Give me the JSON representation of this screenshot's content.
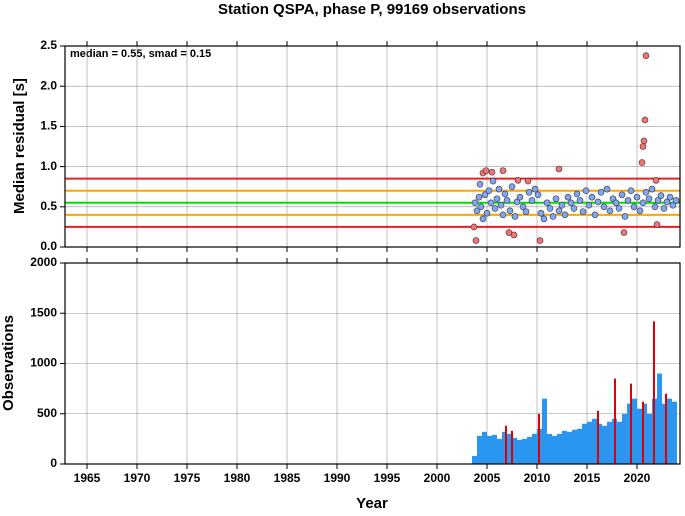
{
  "chart_data": [
    {
      "type": "scatter",
      "title": "Station QSPA, phase P, 99169 observations",
      "ylabel": "Median residual [s]",
      "annotation": "median = 0.55, smad = 0.15",
      "xlim": [
        1962.8,
        2024.3
      ],
      "xticks": [
        1965,
        1970,
        1975,
        1980,
        1985,
        1990,
        1995,
        2000,
        2005,
        2010,
        2015,
        2020
      ],
      "ylim": [
        0,
        2.5
      ],
      "yticks": [
        {
          "value": 0,
          "label": "0.0"
        },
        0.5,
        {
          "value": 1,
          "label": "1.0"
        },
        1.5,
        {
          "value": 2,
          "label": "2.0"
        },
        2.5
      ],
      "grid": true,
      "reference_lines": [
        {
          "value": 0.85,
          "color": "#e82020"
        },
        {
          "value": 0.7,
          "color": "#ffa500"
        },
        {
          "value": 0.55,
          "color": "#00e000"
        },
        {
          "value": 0.4,
          "color": "#ffa500"
        },
        {
          "value": 0.25,
          "color": "#e82020"
        }
      ],
      "series": [
        {
          "color": "#7ea6f4",
          "x": [
            2003.8,
            2004.0,
            2004.2,
            2004.3,
            2004.4,
            2004.6,
            2004.8,
            2005.0,
            2005.2,
            2005.4,
            2005.6,
            2005.8,
            2006.0,
            2006.2,
            2006.4,
            2006.6,
            2006.8,
            2007.0,
            2007.3,
            2007.5,
            2007.8,
            2008.0,
            2008.3,
            2008.6,
            2008.9,
            2009.2,
            2009.5,
            2009.8,
            2010.1,
            2010.4,
            2010.7,
            2011.0,
            2011.3,
            2011.6,
            2011.9,
            2012.2,
            2012.5,
            2012.8,
            2013.1,
            2013.4,
            2013.7,
            2014.0,
            2014.3,
            2014.6,
            2014.9,
            2015.2,
            2015.5,
            2015.8,
            2016.1,
            2016.4,
            2016.7,
            2017.0,
            2017.3,
            2017.6,
            2017.9,
            2018.2,
            2018.5,
            2018.8,
            2019.1,
            2019.4,
            2019.7,
            2020.0,
            2020.3,
            2020.6,
            2020.9,
            2021.2,
            2021.5,
            2021.8,
            2022.1,
            2022.4,
            2022.7,
            2023.0,
            2023.3,
            2023.6,
            2023.9
          ],
          "values": [
            0.55,
            0.45,
            0.62,
            0.78,
            0.5,
            0.35,
            0.65,
            0.42,
            0.7,
            0.55,
            0.82,
            0.48,
            0.6,
            0.72,
            0.52,
            0.4,
            0.66,
            0.58,
            0.45,
            0.75,
            0.38,
            0.56,
            0.62,
            0.5,
            0.44,
            0.68,
            0.58,
            0.72,
            0.65,
            0.42,
            0.35,
            0.55,
            0.48,
            0.38,
            0.6,
            0.45,
            0.52,
            0.4,
            0.62,
            0.55,
            0.48,
            0.66,
            0.58,
            0.44,
            0.7,
            0.52,
            0.62,
            0.4,
            0.56,
            0.68,
            0.5,
            0.72,
            0.45,
            0.6,
            0.55,
            0.48,
            0.65,
            0.38,
            0.58,
            0.7,
            0.5,
            0.62,
            0.45,
            0.55,
            0.68,
            0.6,
            0.72,
            0.5,
            0.58,
            0.64,
            0.48,
            0.56,
            0.62,
            0.52,
            0.58
          ]
        },
        {
          "color": "#f47272",
          "x": [
            2003.7,
            2003.9,
            2004.6,
            2004.9,
            2005.5,
            2006.6,
            2007.2,
            2007.7,
            2008.1,
            2009.1,
            2010.3,
            2012.2,
            2018.7,
            2020.5,
            2020.6,
            2020.7,
            2020.8,
            2020.9,
            2021.9,
            2022.0
          ],
          "values": [
            0.25,
            0.08,
            0.92,
            0.95,
            0.93,
            0.95,
            0.18,
            0.15,
            0.83,
            0.82,
            0.08,
            0.97,
            0.18,
            1.05,
            1.25,
            1.32,
            1.58,
            2.38,
            0.83,
            0.28
          ]
        }
      ]
    },
    {
      "type": "bar",
      "ylabel": "Observations",
      "xlabel": "Year",
      "xlim": [
        1962.8,
        2024.3
      ],
      "xticks": [
        1965,
        1970,
        1975,
        1980,
        1985,
        1990,
        1995,
        2000,
        2005,
        2010,
        2015,
        2020
      ],
      "ylim": [
        0,
        2000
      ],
      "yticks": [
        0,
        500,
        1000,
        1500,
        2000
      ],
      "grid": true,
      "series": [
        {
          "color": "#2a96f0",
          "x": [
            2003.75,
            2004.25,
            2004.75,
            2005.25,
            2005.75,
            2006.25,
            2006.75,
            2007.25,
            2007.75,
            2008.25,
            2008.75,
            2009.25,
            2009.75,
            2010.25,
            2010.75,
            2011.25,
            2011.75,
            2012.25,
            2012.75,
            2013.25,
            2013.75,
            2014.25,
            2014.75,
            2015.25,
            2015.75,
            2016.25,
            2016.75,
            2017.25,
            2017.75,
            2018.25,
            2018.75,
            2019.25,
            2019.75,
            2020.25,
            2020.75,
            2021.25,
            2021.75,
            2022.25,
            2022.75,
            2023.25,
            2023.75
          ],
          "values": [
            80,
            280,
            320,
            280,
            290,
            250,
            320,
            300,
            260,
            240,
            250,
            270,
            300,
            350,
            650,
            300,
            280,
            300,
            330,
            320,
            340,
            350,
            400,
            420,
            450,
            400,
            380,
            420,
            450,
            420,
            500,
            600,
            650,
            550,
            600,
            500,
            650,
            900,
            600,
            650,
            620
          ]
        },
        {
          "color": "#e00000",
          "x": [
            2006.9,
            2007.5,
            2010.2,
            2016.1,
            2017.8,
            2019.4,
            2020.6,
            2021.7,
            2022.9
          ],
          "values": [
            380,
            330,
            500,
            530,
            850,
            800,
            620,
            1420,
            700
          ]
        }
      ]
    }
  ]
}
